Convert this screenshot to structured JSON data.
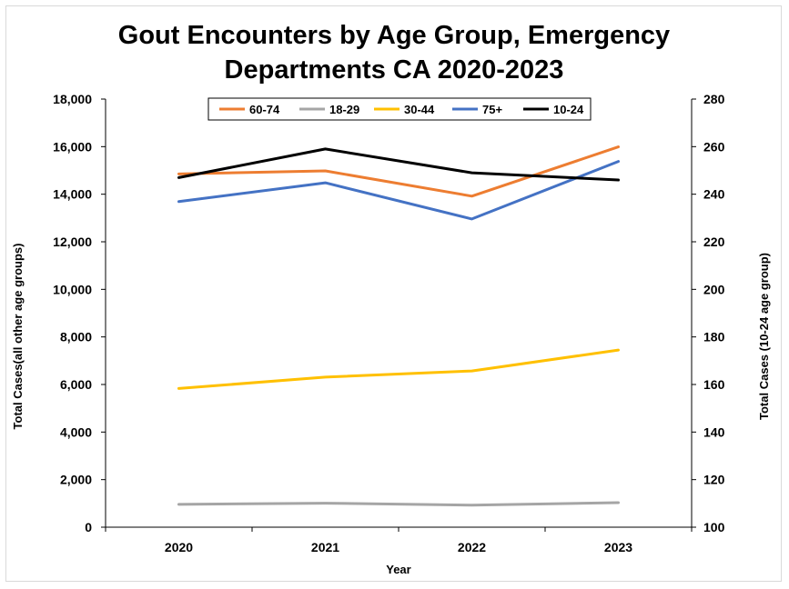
{
  "chart_data": {
    "type": "line",
    "title_line1": "Gout Encounters by Age Group, Emergency",
    "title_line2": "Departments CA 2020-2023",
    "xlabel": "Year",
    "ylabel_left": "Total Cases(all other age groups)",
    "ylabel_right": "Total Cases (10-24 age group)",
    "categories": [
      "2020",
      "2021",
      "2022",
      "2023"
    ],
    "ylim_left": [
      0,
      18000
    ],
    "ylim_right": [
      100,
      280
    ],
    "yticks_left": [
      "0",
      "2,000",
      "4,000",
      "6,000",
      "8,000",
      "10,000",
      "12,000",
      "14,000",
      "16,000",
      "18,000"
    ],
    "yticks_right": [
      "100",
      "120",
      "140",
      "160",
      "180",
      "200",
      "220",
      "240",
      "260",
      "280"
    ],
    "grid": false,
    "legend_position": "top",
    "series": [
      {
        "name": "60-74",
        "axis": "left",
        "color": "#ED7D31",
        "values": [
          14850,
          14980,
          13920,
          15990
        ]
      },
      {
        "name": "18-29",
        "axis": "left",
        "color": "#A5A5A5",
        "values": [
          960,
          1010,
          930,
          1030
        ]
      },
      {
        "name": "30-44",
        "axis": "left",
        "color": "#FFC000",
        "values": [
          5830,
          6310,
          6570,
          7450
        ]
      },
      {
        "name": "75+",
        "axis": "left",
        "color": "#4472C4",
        "values": [
          13690,
          14480,
          12960,
          15380
        ]
      },
      {
        "name": "10-24",
        "axis": "right",
        "color": "#000000",
        "values": [
          247,
          259,
          249,
          246
        ]
      }
    ]
  }
}
